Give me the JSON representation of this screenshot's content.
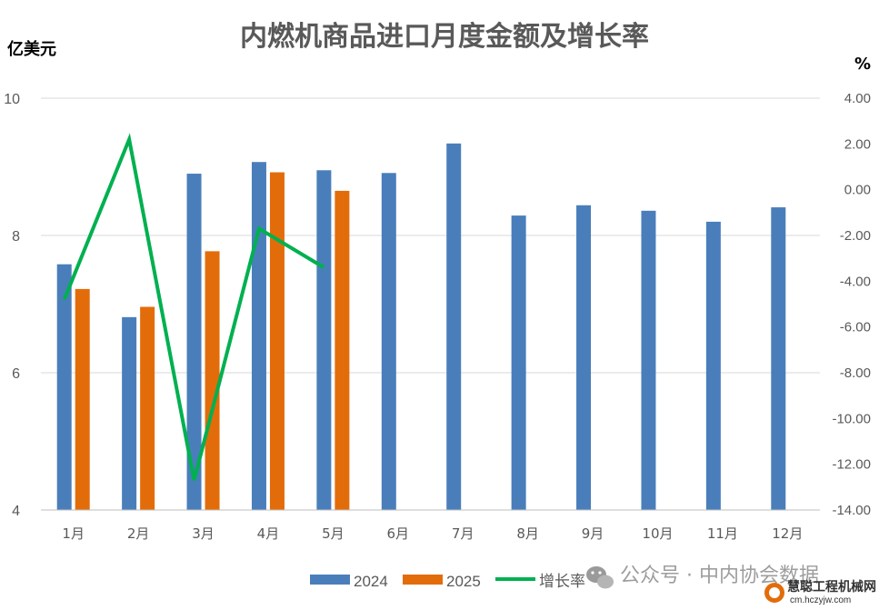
{
  "chart_data": {
    "type": "bar",
    "title": "内燃机商品进口月度金额及增长率",
    "y_left_unit": "亿美元",
    "y_right_unit": "%",
    "categories": [
      "1月",
      "2月",
      "3月",
      "4月",
      "5月",
      "6月",
      "7月",
      "8月",
      "9月",
      "10月",
      "11月",
      "12月"
    ],
    "series": [
      {
        "name": "2024",
        "type": "bar",
        "axis": "left",
        "color": "#4a7ebb",
        "values": [
          7.58,
          6.81,
          8.9,
          9.07,
          8.95,
          8.91,
          9.34,
          8.29,
          8.44,
          8.36,
          8.2,
          8.41
        ]
      },
      {
        "name": "2025",
        "type": "bar",
        "axis": "left",
        "color": "#e36c0a",
        "values": [
          7.22,
          6.96,
          7.77,
          8.92,
          8.65,
          null,
          null,
          null,
          null,
          null,
          null,
          null
        ]
      },
      {
        "name": "增长率",
        "type": "line",
        "axis": "right",
        "color": "#00b050",
        "values": [
          -4.8,
          2.2,
          -12.7,
          -1.7,
          -3.4,
          null,
          null,
          null,
          null,
          null,
          null,
          null
        ]
      }
    ],
    "y_left": {
      "min": 4,
      "max": 10,
      "ticks": [
        "4",
        "6",
        "8",
        "10"
      ],
      "tick_values": [
        4,
        6,
        8,
        10
      ]
    },
    "y_right": {
      "min": -14,
      "max": 4,
      "ticks": [
        "4.00",
        "2.00",
        "0.00",
        "-2.00",
        "-4.00",
        "-6.00",
        "-8.00",
        "-10.00",
        "-12.00",
        "-14.00"
      ],
      "tick_values": [
        4,
        2,
        0,
        -2,
        -4,
        -6,
        -8,
        -10,
        -12,
        -14
      ]
    },
    "grid": true,
    "legend_position": "bottom"
  },
  "watermark": {
    "text": "公众号 · 中内协会数据",
    "logo_text": "慧聪工程机械网",
    "logo_url_text": "cm.hczyjw.com"
  }
}
